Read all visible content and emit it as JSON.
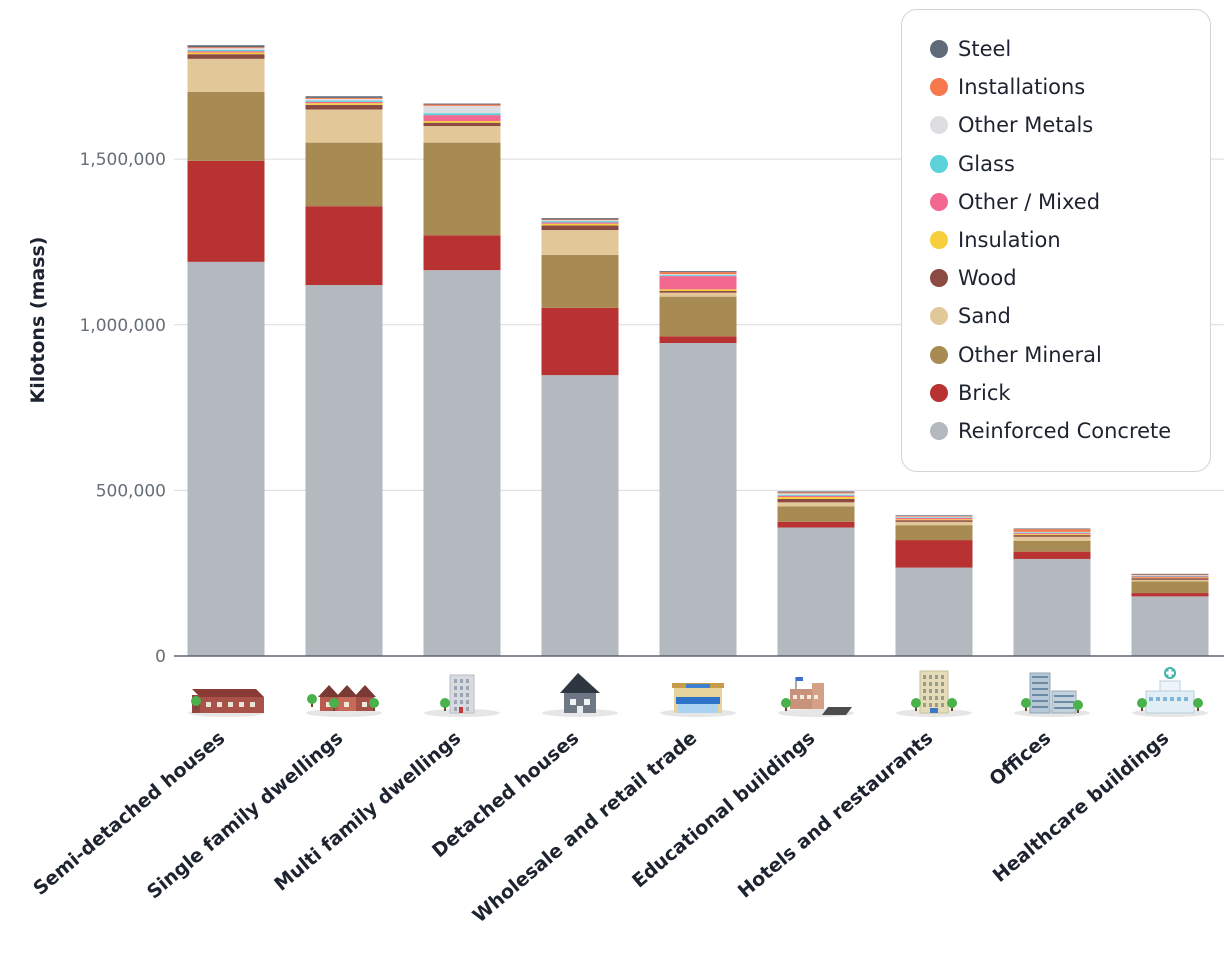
{
  "chart_data": {
    "type": "bar",
    "stacked": true,
    "title": "",
    "ylabel": "Kilotons (mass)",
    "xlabel": "",
    "ylim": [
      0,
      1890000
    ],
    "yticks": [
      0,
      500000,
      1000000,
      1500000
    ],
    "ytick_labels": [
      "0",
      "500,000",
      "1,000,000",
      "1,500,000"
    ],
    "grid": true,
    "legend_position": "top-right",
    "categories": [
      "Semi-detached houses",
      "Single family dwellings",
      "Multi family dwellings",
      "Detached houses",
      "Wholesale and retail trade",
      "Educational buildings",
      "Hotels and restaurants",
      "Offices",
      "Healthcare buildings"
    ],
    "category_icons": [
      "semi-detached-houses-icon",
      "single-family-dwellings-icon",
      "multi-family-dwellings-icon",
      "detached-house-icon",
      "retail-store-icon",
      "school-building-icon",
      "hotel-building-icon",
      "office-buildings-icon",
      "hospital-building-icon"
    ],
    "series": [
      {
        "name": "Reinforced Concrete",
        "color": "#b3b9be",
        "values": [
          1190000,
          1120000,
          1165000,
          848000,
          945000,
          388000,
          267000,
          293000,
          180000
        ]
      },
      {
        "name": "Brick",
        "color": "#b83232",
        "values": [
          305000,
          238000,
          105000,
          203000,
          20000,
          17000,
          83000,
          22000,
          10000
        ]
      },
      {
        "name": "Other Mineral",
        "color": "#a88b52",
        "values": [
          208000,
          192000,
          280000,
          160000,
          120000,
          47000,
          45000,
          33000,
          35000
        ]
      },
      {
        "name": "Sand",
        "color": "#e2c898",
        "values": [
          100000,
          100000,
          50000,
          75000,
          12000,
          12000,
          10000,
          12000,
          5000
        ]
      },
      {
        "name": "Wood",
        "color": "#8b4a42",
        "values": [
          14000,
          14000,
          10000,
          14000,
          5000,
          10000,
          5000,
          5000,
          5000
        ]
      },
      {
        "name": "Insulation",
        "color": "#f7cf3d",
        "values": [
          5000,
          5000,
          5000,
          5000,
          5000,
          6000,
          3000,
          3000,
          2000
        ]
      },
      {
        "name": "Other / Mixed",
        "color": "#f36890",
        "values": [
          4000,
          4000,
          18000,
          4000,
          40000,
          4000,
          4000,
          3000,
          3000
        ]
      },
      {
        "name": "Glass",
        "color": "#5cd2db",
        "values": [
          4000,
          4000,
          6000,
          4000,
          3000,
          3000,
          2000,
          2000,
          2000
        ]
      },
      {
        "name": "Other Metals",
        "color": "#dedee2",
        "values": [
          5000,
          5000,
          22000,
          3000,
          3000,
          4000,
          2000,
          2000,
          2000
        ]
      },
      {
        "name": "Installations",
        "color": "#f8784e",
        "values": [
          3000,
          3000,
          4000,
          2000,
          6000,
          3000,
          2000,
          8000,
          2000
        ]
      },
      {
        "name": "Steel",
        "color": "#5e6a78",
        "values": [
          6000,
          5000,
          3000,
          4000,
          3000,
          3000,
          2000,
          2000,
          2000
        ]
      }
    ]
  },
  "legend": {
    "items": [
      {
        "label": "Steel",
        "color": "#5e6a78"
      },
      {
        "label": "Installations",
        "color": "#f8784e"
      },
      {
        "label": "Other Metals",
        "color": "#dedee2"
      },
      {
        "label": "Glass",
        "color": "#5cd2db"
      },
      {
        "label": "Other / Mixed",
        "color": "#f36890"
      },
      {
        "label": "Insulation",
        "color": "#f7cf3d"
      },
      {
        "label": "Wood",
        "color": "#8b4a42"
      },
      {
        "label": "Sand",
        "color": "#e2c898"
      },
      {
        "label": "Other Mineral",
        "color": "#a88b52"
      },
      {
        "label": "Brick",
        "color": "#b83232"
      },
      {
        "label": "Reinforced Concrete",
        "color": "#b3b9be"
      }
    ]
  }
}
